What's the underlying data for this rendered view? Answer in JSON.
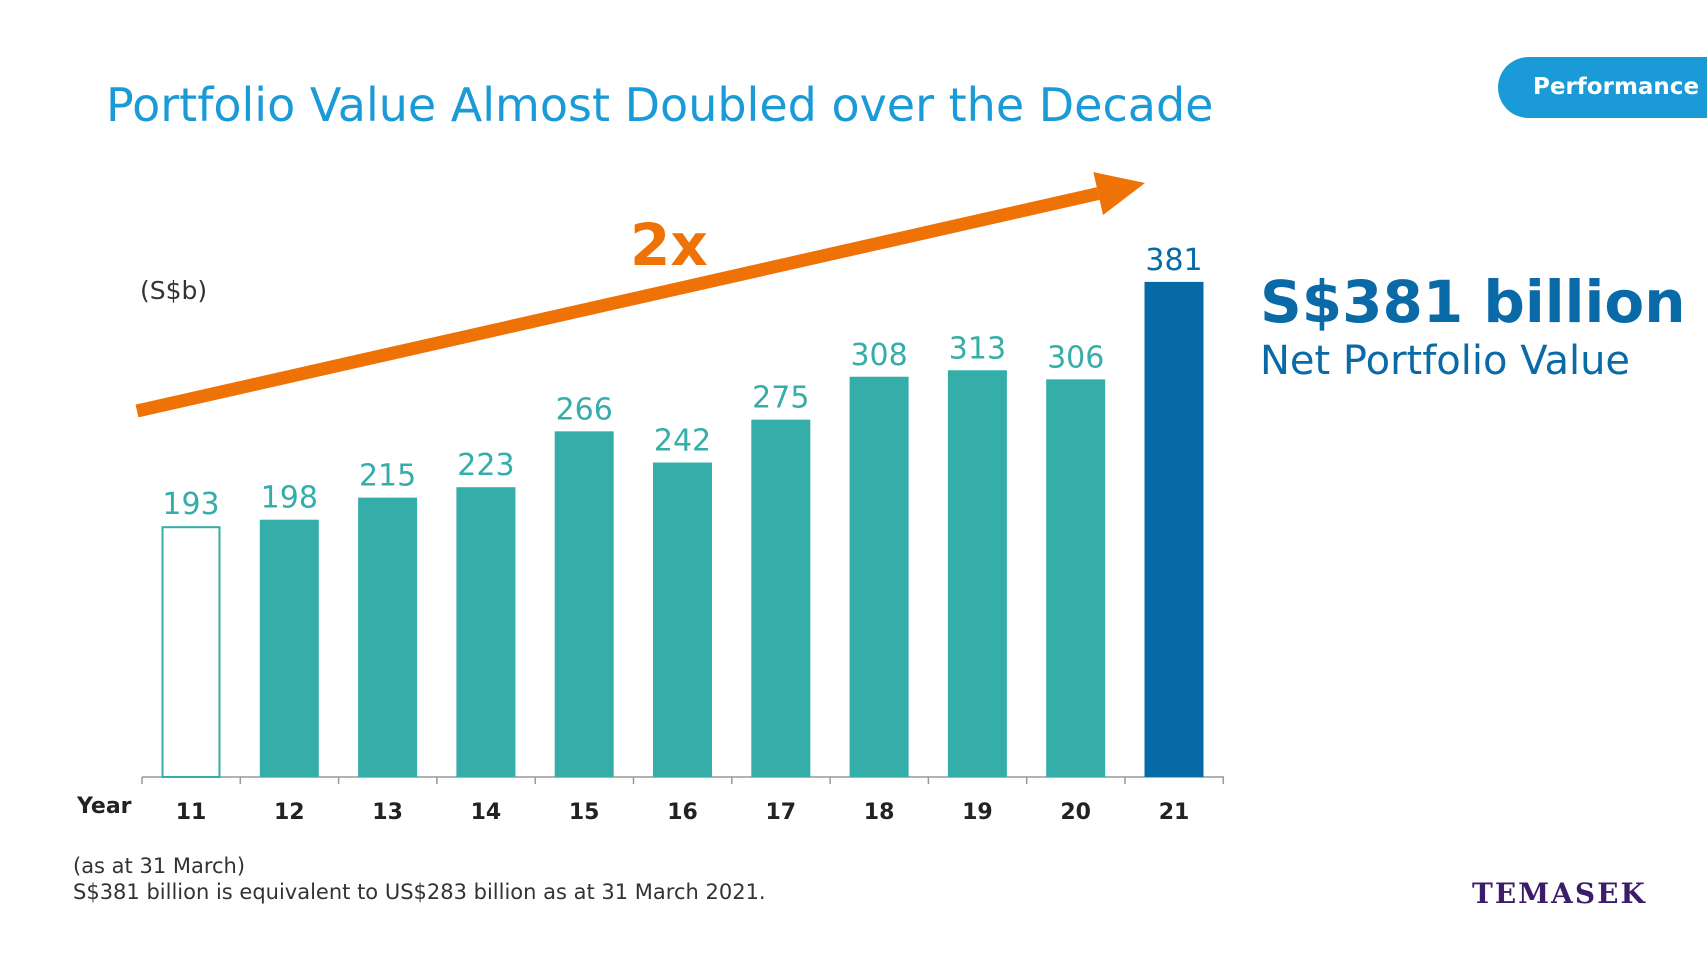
{
  "header": {
    "title": "Portfolio Value Almost Doubled over the Decade",
    "section_tag": "Performance"
  },
  "highlight": {
    "value": "S$381 billion",
    "label": "Net Portfolio Value"
  },
  "footnotes": {
    "line1": "(as at 31 March)",
    "line2": "S$381 billion is equivalent to US$283 billion as at 31 March 2021."
  },
  "logo_text": "TEMASEK",
  "chart_data": {
    "type": "bar",
    "unit_label": "(S$b)",
    "xlabel": "Year",
    "categories": [
      "11",
      "12",
      "13",
      "14",
      "15",
      "16",
      "17",
      "18",
      "19",
      "20",
      "21"
    ],
    "values": [
      193,
      198,
      215,
      223,
      266,
      242,
      275,
      308,
      313,
      306,
      381
    ],
    "annotation": "2x",
    "colors": {
      "bar": "#35ada8",
      "bar_outline": "#35ada8",
      "highlight_bar": "#066aa8",
      "arrow": "#ee7205",
      "axis": "#999999"
    },
    "first_bar_style": "outline",
    "highlight_last": true
  }
}
